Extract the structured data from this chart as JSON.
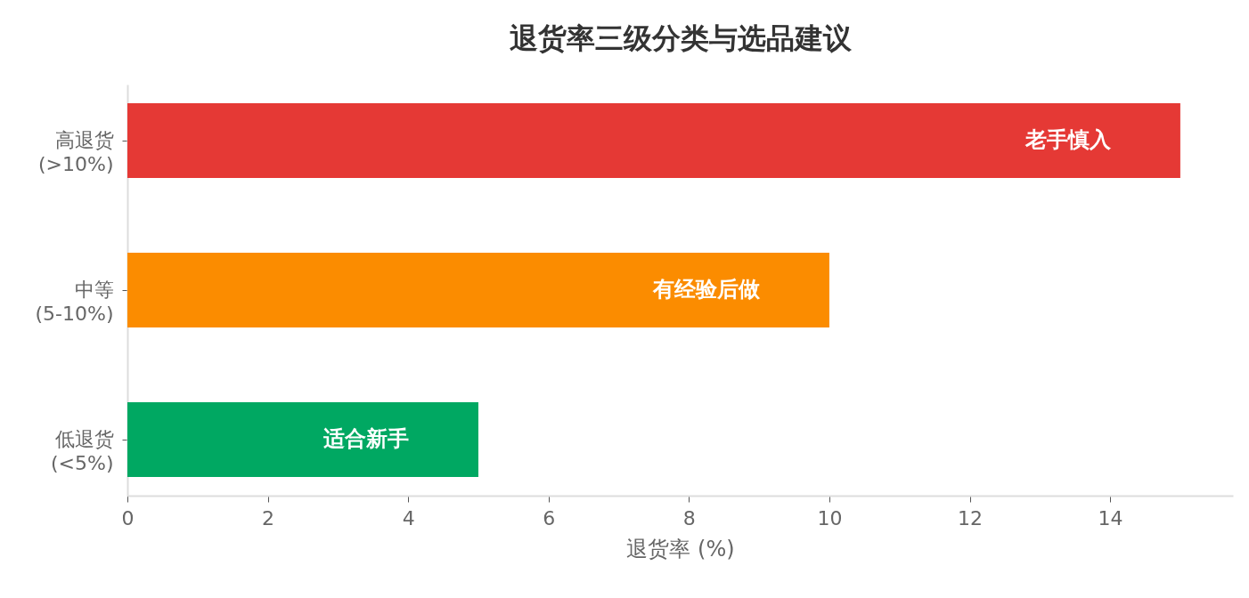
{
  "chart_data": {
    "type": "bar",
    "orientation": "horizontal",
    "title": "退货率三级分类与选品建议",
    "xlabel": "退货率 (%)",
    "categories": [
      "高退货\n(>10%)",
      "中等\n(5-10%)",
      "低退货\n(<5%)"
    ],
    "values": [
      15,
      10,
      5
    ],
    "colors": [
      "#e53935",
      "#fb8c00",
      "#00a862"
    ],
    "xlim": [
      0,
      15.75
    ],
    "xticks": [
      0,
      2,
      4,
      6,
      8,
      10,
      12,
      14
    ],
    "grid": false,
    "annotations": [
      "老手慎入",
      "有经验后做",
      "适合新手"
    ]
  }
}
